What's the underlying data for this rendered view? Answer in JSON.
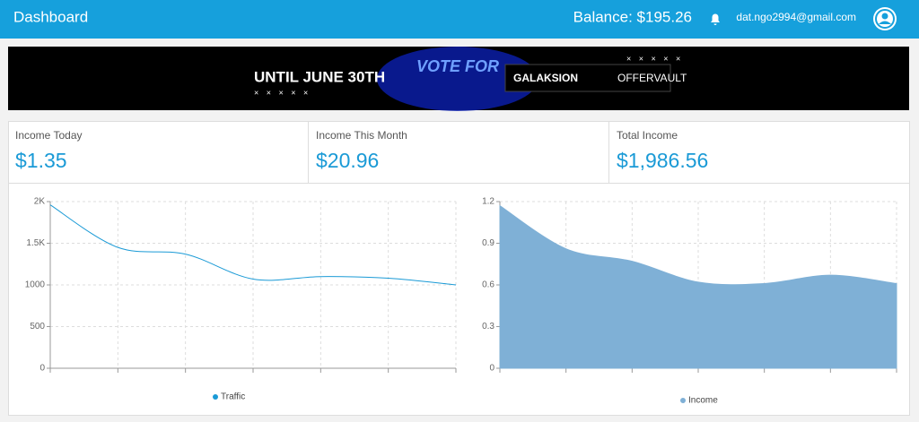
{
  "header": {
    "title": "Dashboard",
    "balance": "Balance: $195.26",
    "email": "dat.ngo2994@gmail.com"
  },
  "banner": {
    "until": "UNTIL JUNE 30TH",
    "vote": "VOTE FOR",
    "brand": "GALAKSION",
    "partner": "OFFERVAULT"
  },
  "stats": [
    {
      "label": "Income Today",
      "value": "$1.35"
    },
    {
      "label": "Income This Month",
      "value": "$20.96"
    },
    {
      "label": "Total Income",
      "value": "$1,986.56"
    }
  ],
  "chart_data": [
    {
      "type": "line",
      "categories": [
        null,
        null,
        null,
        null,
        null,
        null,
        null
      ],
      "series": [
        {
          "name": "Traffic",
          "color": "#1a9ad6",
          "values": [
            1960,
            1450,
            1370,
            1070,
            1100,
            1080,
            1000
          ]
        }
      ],
      "ylim": [
        0,
        2000
      ],
      "yticks": [
        0,
        500,
        1000,
        {
          "value": 1500,
          "label": "1.5K"
        },
        {
          "value": 2000,
          "label": "2K"
        }
      ],
      "grid": true
    },
    {
      "type": "area",
      "categories": [
        null,
        null,
        null,
        null,
        null,
        null,
        null
      ],
      "series": [
        {
          "name": "Income",
          "color": "#7fb0d6",
          "values": [
            1.17,
            0.86,
            0.77,
            0.62,
            0.61,
            0.67,
            0.61
          ]
        }
      ],
      "ylim": [
        0,
        1.2
      ],
      "yticks": [
        0,
        0.3,
        0.6,
        0.9,
        1.2
      ],
      "grid": true
    }
  ]
}
